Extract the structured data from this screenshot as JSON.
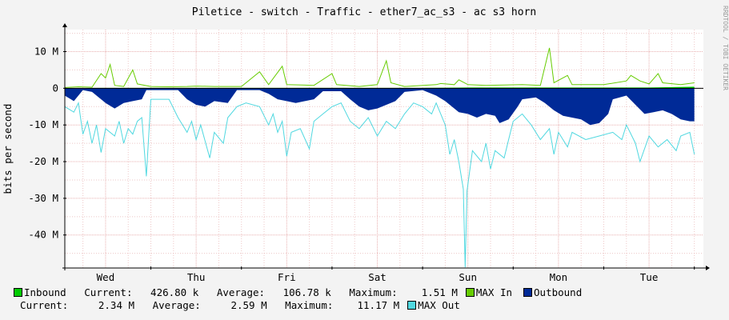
{
  "chart_data": {
    "type": "area",
    "title": "Piletice - switch - Traffic - ether7_ac_s3 - ac s3 horn",
    "ylabel": "bits per second",
    "watermark": "RRDTOOL / TOBI OETIKER",
    "ylim": [
      -49000000,
      16000000
    ],
    "yticks": [
      {
        "value": 10000000,
        "label": "10 M"
      },
      {
        "value": 0,
        "label": "0"
      },
      {
        "value": -10000000,
        "label": "-10 M"
      },
      {
        "value": -20000000,
        "label": "-20 M"
      },
      {
        "value": -30000000,
        "label": "-30 M"
      },
      {
        "value": -40000000,
        "label": "-40 M"
      }
    ],
    "xlim": [
      -0.45,
      6.6
    ],
    "days": [
      {
        "x": 0,
        "label": "Wed"
      },
      {
        "x": 1,
        "label": "Thu"
      },
      {
        "x": 2,
        "label": "Fri"
      },
      {
        "x": 3,
        "label": "Sat"
      },
      {
        "x": 4,
        "label": "Sun"
      },
      {
        "x": 5,
        "label": "Mon"
      },
      {
        "x": 6,
        "label": "Tue"
      }
    ],
    "colors": {
      "inbound": "#00cc00",
      "max_in": "#66cc00",
      "outbound": "#002a97",
      "max_out": "#50d8e0",
      "grid": "#e8b0b0",
      "axis": "#000000"
    },
    "series": [
      {
        "name": "Inbound",
        "type": "area",
        "color": "#00cc00",
        "points": [
          [
            -0.45,
            0.05
          ],
          [
            0,
            0.1
          ],
          [
            0.5,
            0.1
          ],
          [
            1,
            0.1
          ],
          [
            1.5,
            0.1
          ],
          [
            2,
            0.1
          ],
          [
            2.5,
            0.1
          ],
          [
            3,
            0.1
          ],
          [
            3.5,
            0.1
          ],
          [
            4,
            0.2
          ],
          [
            4.5,
            0.2
          ],
          [
            5,
            0.2
          ],
          [
            5.5,
            0.2
          ],
          [
            6,
            0.2
          ],
          [
            6.5,
            0.43
          ]
        ]
      },
      {
        "name": "MAX In",
        "type": "line",
        "color": "#66cc00",
        "points": [
          [
            -0.45,
            0.2
          ],
          [
            -0.3,
            0.4
          ],
          [
            -0.15,
            0.3
          ],
          [
            -0.05,
            4.0
          ],
          [
            0.0,
            2.8
          ],
          [
            0.05,
            6.5
          ],
          [
            0.1,
            0.8
          ],
          [
            0.2,
            0.5
          ],
          [
            0.3,
            5.0
          ],
          [
            0.35,
            1.2
          ],
          [
            0.5,
            0.5
          ],
          [
            0.7,
            0.4
          ],
          [
            0.9,
            0.5
          ],
          [
            1.0,
            0.6
          ],
          [
            1.2,
            0.5
          ],
          [
            1.5,
            0.5
          ],
          [
            1.7,
            4.5
          ],
          [
            1.8,
            1.0
          ],
          [
            1.95,
            6.0
          ],
          [
            2.0,
            1.0
          ],
          [
            2.3,
            0.8
          ],
          [
            2.5,
            4.0
          ],
          [
            2.55,
            1.0
          ],
          [
            2.8,
            0.5
          ],
          [
            3.0,
            1.0
          ],
          [
            3.1,
            7.5
          ],
          [
            3.15,
            1.5
          ],
          [
            3.3,
            0.5
          ],
          [
            3.65,
            1.0
          ],
          [
            3.7,
            1.3
          ],
          [
            3.85,
            1.0
          ],
          [
            3.9,
            2.3
          ],
          [
            4.0,
            1.0
          ],
          [
            4.2,
            0.8
          ],
          [
            4.6,
            1.0
          ],
          [
            4.8,
            0.8
          ],
          [
            4.9,
            11.0
          ],
          [
            4.95,
            1.5
          ],
          [
            5.1,
            3.5
          ],
          [
            5.15,
            1.0
          ],
          [
            5.5,
            1.0
          ],
          [
            5.75,
            2.0
          ],
          [
            5.8,
            3.5
          ],
          [
            5.9,
            2.0
          ],
          [
            6.0,
            1.2
          ],
          [
            6.1,
            4.0
          ],
          [
            6.15,
            1.5
          ],
          [
            6.35,
            1.0
          ],
          [
            6.5,
            1.5
          ]
        ]
      },
      {
        "name": "Outbound",
        "type": "area",
        "color": "#002a97",
        "points": [
          [
            -0.45,
            -2.0
          ],
          [
            -0.35,
            -3.5
          ],
          [
            -0.25,
            -0.5
          ],
          [
            -0.15,
            -1.0
          ],
          [
            -0.05,
            -3.0
          ],
          [
            0.0,
            -4.0
          ],
          [
            0.1,
            -5.5
          ],
          [
            0.2,
            -4.0
          ],
          [
            0.3,
            -3.5
          ],
          [
            0.4,
            -3.0
          ],
          [
            0.45,
            -0.5
          ],
          [
            0.8,
            -0.5
          ],
          [
            0.9,
            -3.0
          ],
          [
            1.0,
            -4.5
          ],
          [
            1.1,
            -5.0
          ],
          [
            1.2,
            -3.5
          ],
          [
            1.35,
            -4.0
          ],
          [
            1.45,
            -0.5
          ],
          [
            1.7,
            -0.5
          ],
          [
            1.8,
            -1.5
          ],
          [
            1.9,
            -3.0
          ],
          [
            2.0,
            -3.5
          ],
          [
            2.1,
            -4.0
          ],
          [
            2.2,
            -3.5
          ],
          [
            2.3,
            -3.0
          ],
          [
            2.4,
            -0.8
          ],
          [
            2.6,
            -0.8
          ],
          [
            2.7,
            -3.0
          ],
          [
            2.8,
            -5.0
          ],
          [
            2.9,
            -6.0
          ],
          [
            3.0,
            -5.5
          ],
          [
            3.1,
            -4.5
          ],
          [
            3.2,
            -3.5
          ],
          [
            3.3,
            -1.0
          ],
          [
            3.5,
            -0.5
          ],
          [
            3.65,
            -2.0
          ],
          [
            3.75,
            -3.5
          ],
          [
            3.9,
            -6.5
          ],
          [
            4.0,
            -7.0
          ],
          [
            4.1,
            -8.0
          ],
          [
            4.2,
            -7.0
          ],
          [
            4.3,
            -7.5
          ],
          [
            4.35,
            -9.5
          ],
          [
            4.45,
            -8.5
          ],
          [
            4.55,
            -5.0
          ],
          [
            4.6,
            -3.0
          ],
          [
            4.75,
            -2.5
          ],
          [
            4.85,
            -4.0
          ],
          [
            4.95,
            -6.0
          ],
          [
            5.05,
            -7.5
          ],
          [
            5.15,
            -8.0
          ],
          [
            5.25,
            -8.5
          ],
          [
            5.35,
            -10.0
          ],
          [
            5.45,
            -9.5
          ],
          [
            5.55,
            -7.0
          ],
          [
            5.6,
            -3.0
          ],
          [
            5.75,
            -2.0
          ],
          [
            5.85,
            -4.5
          ],
          [
            5.95,
            -7.0
          ],
          [
            6.05,
            -6.5
          ],
          [
            6.15,
            -6.0
          ],
          [
            6.25,
            -7.0
          ],
          [
            6.35,
            -8.5
          ],
          [
            6.45,
            -9.0
          ],
          [
            6.5,
            -9.0
          ]
        ]
      },
      {
        "name": "MAX Out",
        "type": "line",
        "color": "#50d8e0",
        "points": [
          [
            -0.45,
            -5.0
          ],
          [
            -0.35,
            -6.5
          ],
          [
            -0.3,
            -4.0
          ],
          [
            -0.25,
            -12.5
          ],
          [
            -0.2,
            -9.0
          ],
          [
            -0.15,
            -15.0
          ],
          [
            -0.1,
            -10.0
          ],
          [
            -0.05,
            -17.5
          ],
          [
            0.0,
            -11.0
          ],
          [
            0.1,
            -13.0
          ],
          [
            0.15,
            -9.0
          ],
          [
            0.2,
            -15.0
          ],
          [
            0.25,
            -11.0
          ],
          [
            0.3,
            -12.5
          ],
          [
            0.35,
            -9.0
          ],
          [
            0.4,
            -8.0
          ],
          [
            0.45,
            -24.0
          ],
          [
            0.5,
            -3.0
          ],
          [
            0.7,
            -3.0
          ],
          [
            0.8,
            -8.0
          ],
          [
            0.9,
            -12.0
          ],
          [
            0.95,
            -9.0
          ],
          [
            1.0,
            -14.0
          ],
          [
            1.05,
            -10.0
          ],
          [
            1.15,
            -19.0
          ],
          [
            1.2,
            -12.0
          ],
          [
            1.3,
            -15.0
          ],
          [
            1.35,
            -8.0
          ],
          [
            1.45,
            -5.0
          ],
          [
            1.55,
            -4.0
          ],
          [
            1.7,
            -5.0
          ],
          [
            1.8,
            -10.0
          ],
          [
            1.85,
            -7.0
          ],
          [
            1.9,
            -12.0
          ],
          [
            1.95,
            -9.0
          ],
          [
            2.0,
            -18.5
          ],
          [
            2.05,
            -12.0
          ],
          [
            2.15,
            -11.0
          ],
          [
            2.25,
            -16.5
          ],
          [
            2.3,
            -9.0
          ],
          [
            2.4,
            -7.0
          ],
          [
            2.5,
            -5.0
          ],
          [
            2.6,
            -4.0
          ],
          [
            2.7,
            -9.0
          ],
          [
            2.8,
            -11.0
          ],
          [
            2.9,
            -8.0
          ],
          [
            3.0,
            -13.0
          ],
          [
            3.1,
            -9.0
          ],
          [
            3.2,
            -11.0
          ],
          [
            3.3,
            -7.0
          ],
          [
            3.4,
            -4.0
          ],
          [
            3.5,
            -5.0
          ],
          [
            3.6,
            -7.0
          ],
          [
            3.65,
            -4.0
          ],
          [
            3.75,
            -10.0
          ],
          [
            3.8,
            -18.0
          ],
          [
            3.85,
            -14.0
          ],
          [
            3.9,
            -20.0
          ],
          [
            3.95,
            -27.5
          ],
          [
            3.97,
            -48.8
          ],
          [
            3.99,
            -28.0
          ],
          [
            4.05,
            -17.0
          ],
          [
            4.15,
            -20.0
          ],
          [
            4.2,
            -15.0
          ],
          [
            4.25,
            -22.0
          ],
          [
            4.3,
            -17.0
          ],
          [
            4.4,
            -19.0
          ],
          [
            4.45,
            -14.0
          ],
          [
            4.5,
            -9.0
          ],
          [
            4.6,
            -7.0
          ],
          [
            4.7,
            -10.0
          ],
          [
            4.8,
            -14.0
          ],
          [
            4.9,
            -11.0
          ],
          [
            4.95,
            -18.0
          ],
          [
            5.0,
            -12.0
          ],
          [
            5.1,
            -16.0
          ],
          [
            5.15,
            -12.0
          ],
          [
            5.3,
            -14.0
          ],
          [
            5.45,
            -13.0
          ],
          [
            5.6,
            -12.0
          ],
          [
            5.7,
            -14.0
          ],
          [
            5.75,
            -10.0
          ],
          [
            5.85,
            -15.0
          ],
          [
            5.9,
            -20.0
          ],
          [
            6.0,
            -13.0
          ],
          [
            6.1,
            -16.0
          ],
          [
            6.2,
            -14.0
          ],
          [
            6.3,
            -17.0
          ],
          [
            6.35,
            -13.0
          ],
          [
            6.45,
            -12.0
          ],
          [
            6.5,
            -18.0
          ]
        ]
      }
    ]
  },
  "legend": {
    "row1": {
      "inbound_label": "Inbound",
      "inbound_stats": "   Current:   426.80 k   Average:   106.78 k   Maximum:    1.51 M",
      "max_in_label": "MAX In",
      "outbound_label": "Outbound"
    },
    "row2": {
      "stats": "  Current:     2.34 M   Average:     2.59 M   Maximum:    11.17 M",
      "max_out_label": "MAX Out"
    }
  }
}
